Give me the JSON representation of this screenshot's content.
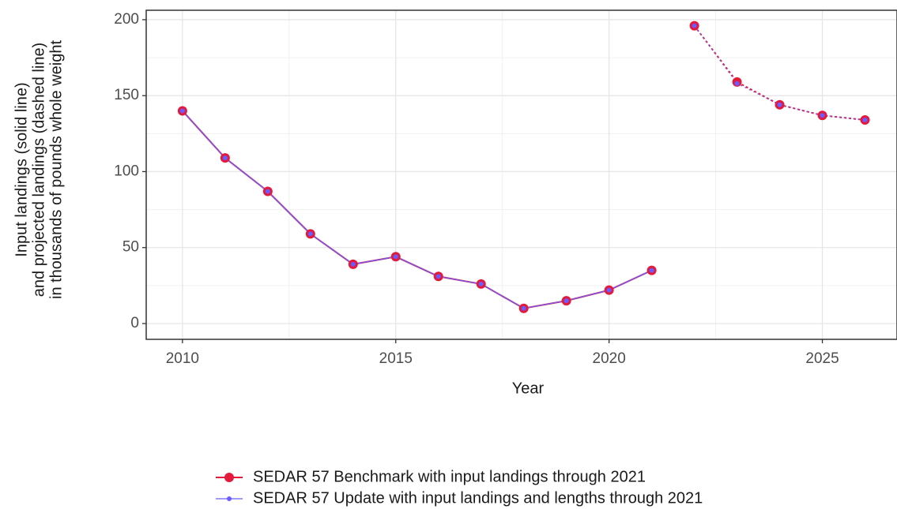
{
  "chart_data": {
    "type": "line",
    "xlabel": "Year",
    "ylabel": [
      "Input landings (solid line)",
      "and projected landings (dashed line)",
      "in thousands of pounds whole weight"
    ],
    "x": [
      2010,
      2011,
      2012,
      2013,
      2014,
      2015,
      2016,
      2017,
      2018,
      2019,
      2020,
      2021,
      2022,
      2023,
      2024,
      2025,
      2026
    ],
    "series": [
      {
        "name": "SEDAR 57 Benchmark with input landings through 2021",
        "color": "#e41a3c",
        "values": [
          140,
          109,
          87,
          59,
          39,
          44,
          31,
          26,
          10,
          15,
          22,
          35,
          null,
          null,
          null,
          null,
          null
        ],
        "projected": [
          null,
          null,
          null,
          null,
          null,
          null,
          null,
          null,
          null,
          null,
          null,
          null,
          196,
          159,
          144,
          137,
          134
        ]
      },
      {
        "name": "SEDAR 57 Update with input landings and lengths through 2021",
        "color": "#6a5cff",
        "values": [
          140,
          109,
          87,
          59,
          39,
          44,
          31,
          26,
          10,
          15,
          22,
          35,
          null,
          null,
          null,
          null,
          null
        ],
        "projected": [
          null,
          null,
          null,
          null,
          null,
          null,
          null,
          null,
          null,
          null,
          null,
          null,
          196,
          158,
          144,
          137,
          134
        ]
      }
    ],
    "xlim": [
      2009.15,
      2026.75
    ],
    "xticks": [
      2010,
      2015,
      2020,
      2025
    ],
    "ylim": [
      -10.4,
      206.2
    ],
    "yticks": [
      0,
      50,
      100,
      150,
      200
    ],
    "grid": true,
    "legend": "bottom"
  }
}
